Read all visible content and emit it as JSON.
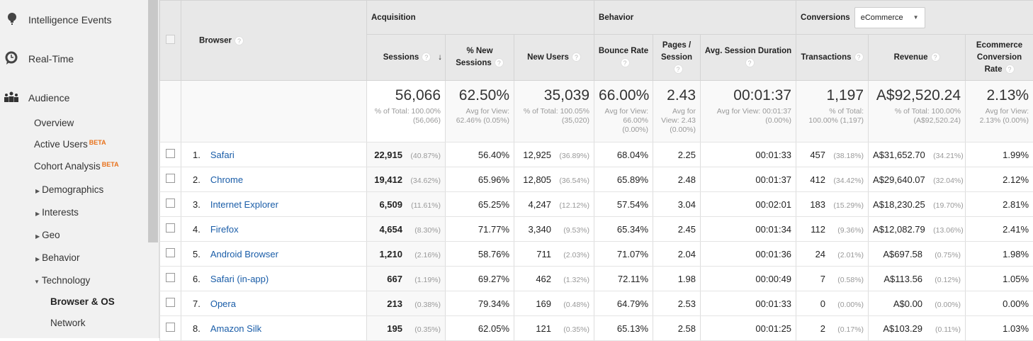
{
  "sidebar": {
    "top_items": [
      {
        "label": "Intelligence Events",
        "icon": "lightbulb-icon"
      },
      {
        "label": "Real-Time",
        "icon": "clock-icon"
      },
      {
        "label": "Audience",
        "icon": "people-icon"
      }
    ],
    "sub_items": [
      {
        "label": "Overview"
      },
      {
        "label": "Active Users",
        "badge": "BETA"
      },
      {
        "label": "Cohort Analysis",
        "badge": "BETA"
      },
      {
        "label": "Demographics",
        "arrow": "right"
      },
      {
        "label": "Interests",
        "arrow": "right"
      },
      {
        "label": "Geo",
        "arrow": "right"
      },
      {
        "label": "Behavior",
        "arrow": "right"
      },
      {
        "label": "Technology",
        "arrow": "down"
      },
      {
        "label": "Browser & OS",
        "active": true
      },
      {
        "label": "Network"
      }
    ]
  },
  "table": {
    "dimension_header": "Browser",
    "groups": {
      "acquisition": "Acquisition",
      "behavior": "Behavior",
      "conversions": "Conversions",
      "conversion_select": "eCommerce"
    },
    "columns": [
      "Sessions",
      "% New Sessions",
      "New Users",
      "Bounce Rate",
      "Pages / Session",
      "Avg. Session Duration",
      "Transactions",
      "Revenue",
      "Ecommerce Conversion Rate"
    ],
    "totals": [
      {
        "value": "56,066",
        "note": "% of Total: 100.00% (56,066)"
      },
      {
        "value": "62.50%",
        "note": "Avg for View: 62.46% (0.05%)"
      },
      {
        "value": "35,039",
        "note": "% of Total: 100.05% (35,020)"
      },
      {
        "value": "66.00%",
        "note": "Avg for View: 66.00% (0.00%)"
      },
      {
        "value": "2.43",
        "note": "Avg for View: 2.43 (0.00%)"
      },
      {
        "value": "00:01:37",
        "note": "Avg for View: 00:01:37 (0.00%)"
      },
      {
        "value": "1,197",
        "note": "% of Total: 100.00% (1,197)"
      },
      {
        "value": "A$92,520.24",
        "note": "% of Total: 100.00% (A$92,520.24)"
      },
      {
        "value": "2.13%",
        "note": "Avg for View: 2.13% (0.00%)"
      }
    ],
    "rows": [
      {
        "rank": "1.",
        "browser": "Safari",
        "sessions": "22,915",
        "sessions_pct": "(40.87%)",
        "new_sessions": "56.40%",
        "new_users": "12,925",
        "new_users_pct": "(36.89%)",
        "bounce": "68.04%",
        "pages": "2.25",
        "duration": "00:01:33",
        "transactions": "457",
        "transactions_pct": "(38.18%)",
        "revenue": "A$31,652.70",
        "revenue_pct": "(34.21%)",
        "conv_rate": "1.99%"
      },
      {
        "rank": "2.",
        "browser": "Chrome",
        "sessions": "19,412",
        "sessions_pct": "(34.62%)",
        "new_sessions": "65.96%",
        "new_users": "12,805",
        "new_users_pct": "(36.54%)",
        "bounce": "65.89%",
        "pages": "2.48",
        "duration": "00:01:37",
        "transactions": "412",
        "transactions_pct": "(34.42%)",
        "revenue": "A$29,640.07",
        "revenue_pct": "(32.04%)",
        "conv_rate": "2.12%"
      },
      {
        "rank": "3.",
        "browser": "Internet Explorer",
        "sessions": "6,509",
        "sessions_pct": "(11.61%)",
        "new_sessions": "65.25%",
        "new_users": "4,247",
        "new_users_pct": "(12.12%)",
        "bounce": "57.54%",
        "pages": "3.04",
        "duration": "00:02:01",
        "transactions": "183",
        "transactions_pct": "(15.29%)",
        "revenue": "A$18,230.25",
        "revenue_pct": "(19.70%)",
        "conv_rate": "2.81%"
      },
      {
        "rank": "4.",
        "browser": "Firefox",
        "sessions": "4,654",
        "sessions_pct": "(8.30%)",
        "new_sessions": "71.77%",
        "new_users": "3,340",
        "new_users_pct": "(9.53%)",
        "bounce": "65.34%",
        "pages": "2.45",
        "duration": "00:01:34",
        "transactions": "112",
        "transactions_pct": "(9.36%)",
        "revenue": "A$12,082.79",
        "revenue_pct": "(13.06%)",
        "conv_rate": "2.41%"
      },
      {
        "rank": "5.",
        "browser": "Android Browser",
        "sessions": "1,210",
        "sessions_pct": "(2.16%)",
        "new_sessions": "58.76%",
        "new_users": "711",
        "new_users_pct": "(2.03%)",
        "bounce": "71.07%",
        "pages": "2.04",
        "duration": "00:01:36",
        "transactions": "24",
        "transactions_pct": "(2.01%)",
        "revenue": "A$697.58",
        "revenue_pct": "(0.75%)",
        "conv_rate": "1.98%"
      },
      {
        "rank": "6.",
        "browser": "Safari (in-app)",
        "sessions": "667",
        "sessions_pct": "(1.19%)",
        "new_sessions": "69.27%",
        "new_users": "462",
        "new_users_pct": "(1.32%)",
        "bounce": "72.11%",
        "pages": "1.98",
        "duration": "00:00:49",
        "transactions": "7",
        "transactions_pct": "(0.58%)",
        "revenue": "A$113.56",
        "revenue_pct": "(0.12%)",
        "conv_rate": "1.05%"
      },
      {
        "rank": "7.",
        "browser": "Opera",
        "sessions": "213",
        "sessions_pct": "(0.38%)",
        "new_sessions": "79.34%",
        "new_users": "169",
        "new_users_pct": "(0.48%)",
        "bounce": "64.79%",
        "pages": "2.53",
        "duration": "00:01:33",
        "transactions": "0",
        "transactions_pct": "(0.00%)",
        "revenue": "A$0.00",
        "revenue_pct": "(0.00%)",
        "conv_rate": "0.00%"
      },
      {
        "rank": "8.",
        "browser": "Amazon Silk",
        "sessions": "195",
        "sessions_pct": "(0.35%)",
        "new_sessions": "62.05%",
        "new_users": "121",
        "new_users_pct": "(0.35%)",
        "bounce": "65.13%",
        "pages": "2.58",
        "duration": "00:01:25",
        "transactions": "2",
        "transactions_pct": "(0.17%)",
        "revenue": "A$103.29",
        "revenue_pct": "(0.11%)",
        "conv_rate": "1.03%"
      }
    ]
  }
}
